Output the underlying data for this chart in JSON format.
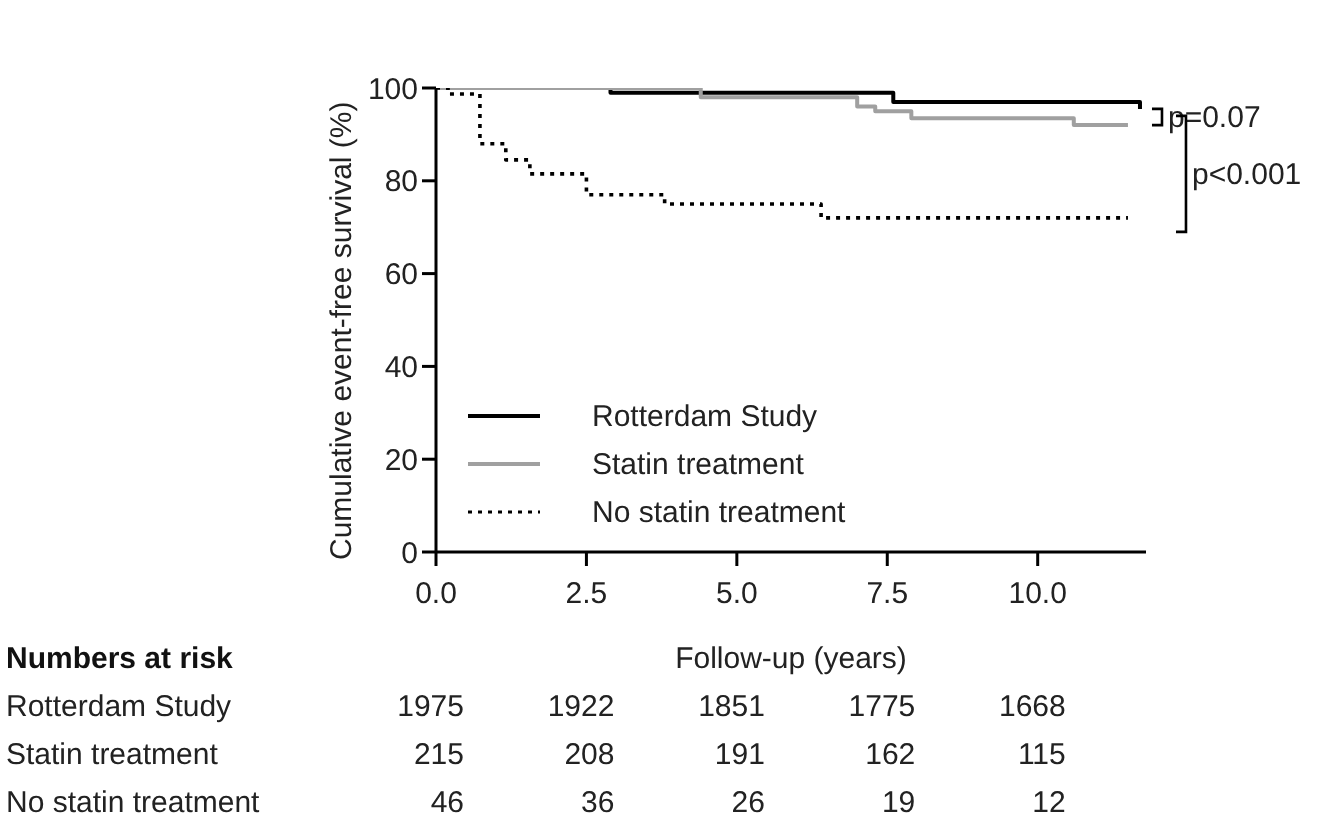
{
  "chart_data": {
    "type": "step",
    "xlabel": "Follow-up (years)",
    "ylabel": "Cumulative event-free survival (%)",
    "series": [
      {
        "name": "Rotterdam Study",
        "color": "#000000",
        "line_style": "solid",
        "x": [
          0,
          2.9,
          7.6,
          11.7
        ],
        "values": [
          100,
          99,
          97,
          95.5
        ]
      },
      {
        "name": "Statin treatment",
        "color": "#a0a0a0",
        "line_style": "solid",
        "x": [
          0,
          4.4,
          7.0,
          7.3,
          7.9,
          10.6,
          11.5
        ],
        "values": [
          100,
          98,
          96,
          95,
          93.5,
          92,
          92
        ]
      },
      {
        "name": "No statin treatment",
        "color": "#000000",
        "line_style": "dotted",
        "x": [
          0,
          0.2,
          0.73,
          1.16,
          1.56,
          2.5,
          3.8,
          6.4,
          11.5
        ],
        "values": [
          100,
          98.7,
          88,
          84.5,
          81.5,
          77,
          75,
          72,
          72
        ]
      }
    ],
    "xlim": [
      0,
      11.8
    ],
    "xticks": [
      {
        "value": 0,
        "label": "0.0"
      },
      {
        "value": 2.5,
        "label": "2.5"
      },
      {
        "value": 5,
        "label": "5.0"
      },
      {
        "value": 7.5,
        "label": "7.5"
      },
      {
        "value": 10,
        "label": "10.0"
      }
    ],
    "ylim": [
      0,
      100
    ],
    "yticks": [
      0,
      20,
      40,
      60,
      80,
      100
    ],
    "legend": "bottom left",
    "marker": "none",
    "annotations": [
      "p=0.07",
      "p<0.001",
      "Numbers at risk",
      "Rotterdam Study",
      "1975",
      "1922",
      "1851",
      "1775",
      "1668",
      "Statin treatment",
      "215",
      "208",
      "191",
      "162",
      "115",
      "No statin treatment",
      "46",
      "36",
      "26",
      "19",
      "12"
    ]
  }
}
